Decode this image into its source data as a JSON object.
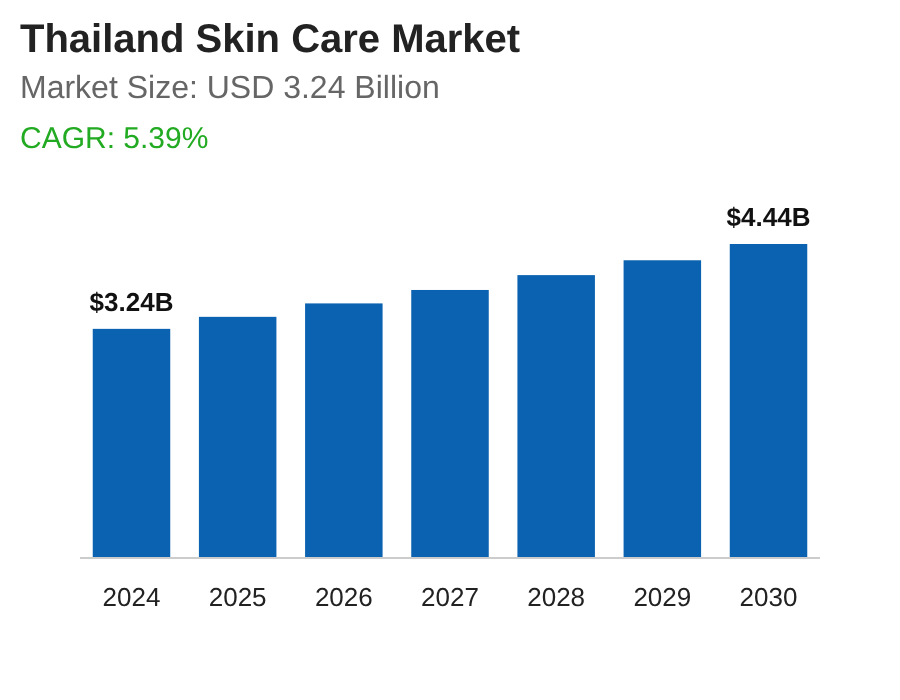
{
  "chart_data": {
    "type": "bar",
    "title": "Thailand Skin Care Market",
    "subtitle": "Market Size: USD 3.24 Billion",
    "annotations": [
      "CAGR: 5.39%"
    ],
    "categories": [
      "2024",
      "2025",
      "2026",
      "2027",
      "2028",
      "2029",
      "2030"
    ],
    "values": [
      3.24,
      3.41,
      3.6,
      3.79,
      4.0,
      4.21,
      4.44
    ],
    "value_labels": [
      "$3.24B",
      null,
      null,
      null,
      null,
      null,
      "$4.44B"
    ],
    "color": "#0b62b0"
  }
}
